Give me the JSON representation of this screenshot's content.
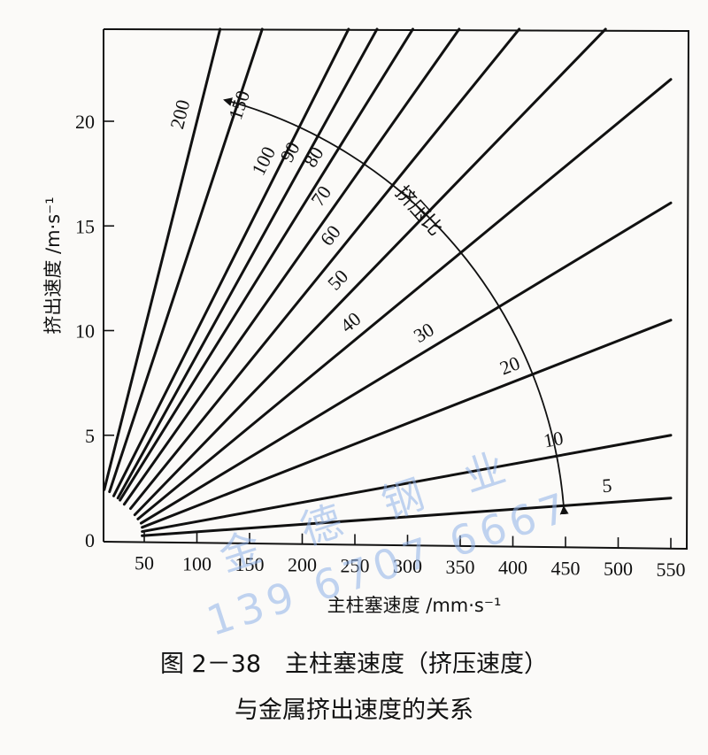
{
  "chart_data": {
    "type": "line",
    "title": "图2－38 主柱塞速度（挤压速度）与金属挤出速度的关系",
    "xlabel": "主柱塞速度 /mm·s⁻¹",
    "ylabel": "挤出速度 /m·s⁻¹",
    "xlim": [
      0,
      560
    ],
    "ylim": [
      0,
      24.4
    ],
    "xticks": [
      50,
      100,
      150,
      200,
      250,
      300,
      350,
      400,
      450,
      500,
      550
    ],
    "yticks": [
      0,
      5,
      10,
      15,
      20
    ],
    "grid": false,
    "legend": "inline labels on each line (挤压比 / extrusion ratio)",
    "annotation": {
      "text": "挤压比",
      "arrow": "arc from ratio 5 up to ratio 200, arrowheads at both ends"
    },
    "series": [
      {
        "name": "200",
        "ratio": 200,
        "x": [
          12,
          122
        ],
        "y": [
          2.4,
          24.4
        ]
      },
      {
        "name": "150",
        "ratio": 150,
        "x": [
          17,
          162
        ],
        "y": [
          2.3,
          24.4
        ]
      },
      {
        "name": "100",
        "ratio": 100,
        "x": [
          21,
          244
        ],
        "y": [
          2.1,
          24.4
        ]
      },
      {
        "name": "90",
        "ratio": 90,
        "x": [
          25,
          271
        ],
        "y": [
          2.0,
          24.4
        ]
      },
      {
        "name": "80",
        "ratio": 80,
        "x": [
          27,
          305
        ],
        "y": [
          1.9,
          24.4
        ]
      },
      {
        "name": "70",
        "ratio": 70,
        "x": [
          31,
          349
        ],
        "y": [
          1.7,
          24.4
        ]
      },
      {
        "name": "60",
        "ratio": 60,
        "x": [
          37,
          406
        ],
        "y": [
          1.5,
          24.4
        ]
      },
      {
        "name": "50",
        "ratio": 50,
        "x": [
          41,
          488
        ],
        "y": [
          1.2,
          24.4
        ]
      },
      {
        "name": "40",
        "ratio": 40,
        "x": [
          44,
          550
        ],
        "y": [
          1.0,
          22.0
        ]
      },
      {
        "name": "30",
        "ratio": 30,
        "x": [
          47,
          550
        ],
        "y": [
          0.8,
          16.1
        ]
      },
      {
        "name": "20",
        "ratio": 20,
        "x": [
          48,
          550
        ],
        "y": [
          0.6,
          10.5
        ]
      },
      {
        "name": "10",
        "ratio": 10,
        "x": [
          48,
          550
        ],
        "y": [
          0.4,
          5.0
        ]
      },
      {
        "name": "5",
        "ratio": 5,
        "x": [
          48,
          550
        ],
        "y": [
          0.2,
          2.0
        ]
      }
    ]
  },
  "axis": {
    "ylabel": "挤出速度 /m·s⁻¹",
    "xlabel": "主柱塞速度 /mm·s⁻¹",
    "xtick_labels": [
      "50",
      "100",
      "150",
      "200",
      "250",
      "300",
      "350",
      "400",
      "450",
      "500",
      "550"
    ],
    "ytick_labels": [
      "0",
      "5",
      "10",
      "15",
      "20"
    ]
  },
  "annotation_label": "挤压比",
  "caption": {
    "line1": "图 2－38　主柱塞速度（挤压速度）",
    "line2": "与金属挤出速度的关系"
  },
  "watermark": {
    "line1": "金 德 钢 业",
    "line2": "139 6707 6667"
  }
}
